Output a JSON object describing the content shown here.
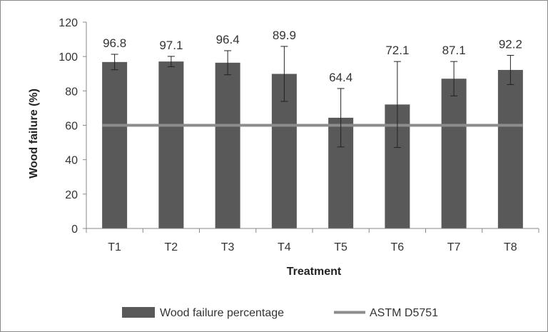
{
  "chart_data": {
    "type": "bar",
    "title": "",
    "xlabel": "Treatment",
    "ylabel": "Wood failure (%)",
    "categories": [
      "T1",
      "T2",
      "T3",
      "T4",
      "T5",
      "T6",
      "T7",
      "T8"
    ],
    "series": [
      {
        "name": "Wood failure percentage",
        "type": "bar",
        "color": "#595959",
        "values": [
          96.8,
          97.1,
          96.4,
          89.9,
          64.4,
          72.1,
          87.1,
          92.2
        ],
        "error": [
          4.5,
          3.0,
          7.0,
          16.0,
          17.0,
          25.0,
          10.0,
          8.5
        ],
        "data_labels": [
          "96.8",
          "97.1",
          "96.4",
          "89.9",
          "64.4",
          "72.1",
          "87.1",
          "92.2"
        ]
      },
      {
        "name": "ASTM D5751",
        "type": "line",
        "color": "#8c8c8c",
        "values": [
          60,
          60,
          60,
          60,
          60,
          60,
          60,
          60
        ]
      }
    ],
    "ylim": [
      0,
      120
    ],
    "yticks": [
      "0",
      "20",
      "40",
      "60",
      "80",
      "100",
      "120"
    ],
    "grid": false,
    "legend_position": "bottom"
  }
}
